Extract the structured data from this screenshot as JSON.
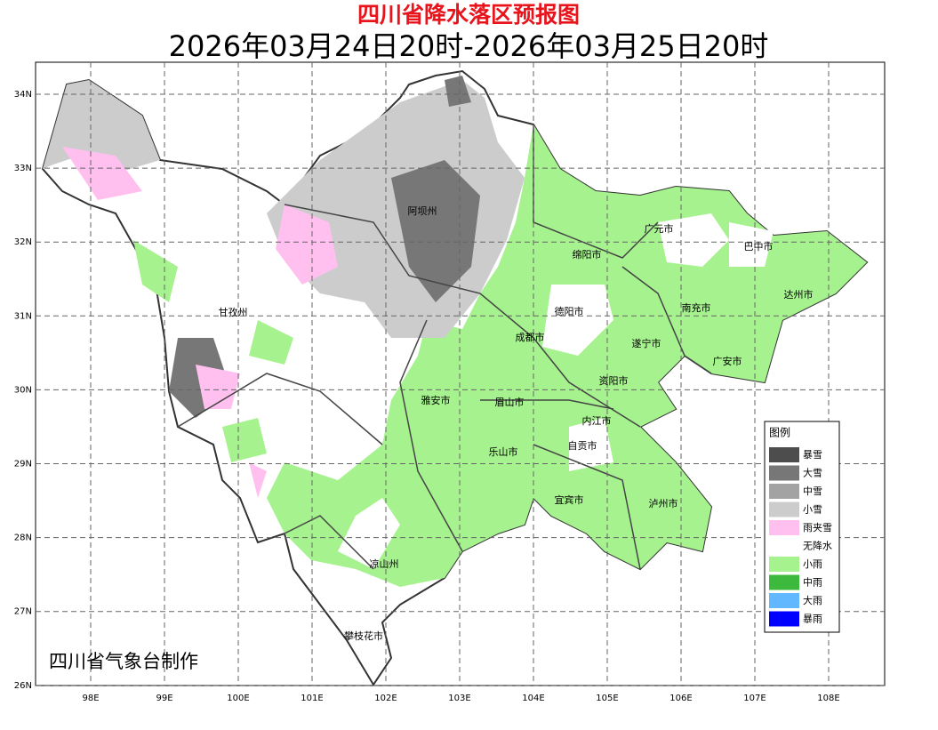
{
  "title": "四川省降水落区预报图",
  "subtitle": "2026年03月24日20时-2026年03月25日20时",
  "credit": "四川省气象台制作",
  "lon_ticks": [
    {
      "value": 98,
      "label": "98E"
    },
    {
      "value": 99,
      "label": "99E"
    },
    {
      "value": 100,
      "label": "100E"
    },
    {
      "value": 101,
      "label": "101E"
    },
    {
      "value": 102,
      "label": "102E"
    },
    {
      "value": 103,
      "label": "103E"
    },
    {
      "value": 104,
      "label": "104E"
    },
    {
      "value": 105,
      "label": "105E"
    },
    {
      "value": 106,
      "label": "106E"
    },
    {
      "value": 107,
      "label": "107E"
    },
    {
      "value": 108,
      "label": "108E"
    }
  ],
  "lat_ticks": [
    {
      "value": 34,
      "label": "34N"
    },
    {
      "value": 33,
      "label": "33N"
    },
    {
      "value": 32,
      "label": "32N"
    },
    {
      "value": 31,
      "label": "31N"
    },
    {
      "value": 30,
      "label": "30N"
    },
    {
      "value": 29,
      "label": "29N"
    },
    {
      "value": 28,
      "label": "28N"
    },
    {
      "value": 27,
      "label": "27N"
    },
    {
      "value": 26,
      "label": "26N"
    }
  ],
  "cities": [
    "阿坝州",
    "广元市",
    "巴中市",
    "绵阳市",
    "甘孜州",
    "德阳市",
    "南充市",
    "达州市",
    "成都市",
    "遂宁市",
    "广安市",
    "资阳市",
    "雅安市",
    "眉山市",
    "内江市",
    "自贡市",
    "乐山市",
    "宜宾市",
    "泸州市",
    "凉山州",
    "攀枝花市"
  ],
  "legend": {
    "title": "图例",
    "items": [
      {
        "name": "暴雪",
        "color": "#4d4d4d"
      },
      {
        "name": "大雪",
        "color": "#777777"
      },
      {
        "name": "中雪",
        "color": "#a3a3a3"
      },
      {
        "name": "小雪",
        "color": "#cccccc"
      },
      {
        "name": "雨夹雪",
        "color": "#ffc0f0"
      },
      {
        "name": "无降水",
        "color": "#ffffff"
      },
      {
        "name": "小雨",
        "color": "#a6f28f"
      },
      {
        "name": "中雨",
        "color": "#3dba3d"
      },
      {
        "name": "大雨",
        "color": "#61b8ff"
      },
      {
        "name": "暴雨",
        "color": "#0000ff"
      }
    ]
  }
}
